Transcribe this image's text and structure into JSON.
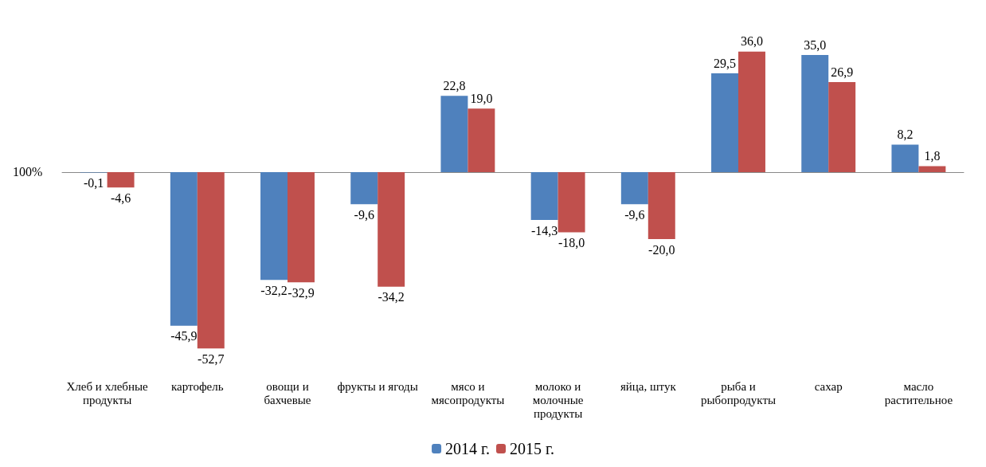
{
  "chart_data": {
    "type": "bar",
    "categories": [
      "Хлеб и хлебные продукты",
      "картофель",
      "овощи и бахчевые",
      "фрукты и ягоды",
      "мясо и мясопродукты",
      "молоко и молочные продукты",
      "яйца, штук",
      "рыба и рыбопродукты",
      "сахар",
      "масло растительное"
    ],
    "series": [
      {
        "name": "2014 г.",
        "color": "#4f81bd",
        "values": [
          -0.1,
          -45.9,
          -32.2,
          -9.6,
          22.8,
          -14.3,
          -9.6,
          29.5,
          35.0,
          8.2
        ],
        "value_labels": [
          "-0,1",
          "-45,9",
          "-32,2",
          "-9,6",
          "22,8",
          "-14,3",
          "-9,6",
          "29,5",
          "35,0",
          "8,2"
        ]
      },
      {
        "name": "2015 г.",
        "color": "#c0504d",
        "values": [
          -4.6,
          -52.7,
          -32.9,
          -34.2,
          19.0,
          -18.0,
          -20.0,
          36.0,
          26.9,
          1.8
        ],
        "value_labels": [
          "-4,6",
          "-52,7",
          "-32,9",
          "-34,2",
          "19,0",
          "-18,0",
          "-20,0",
          "36,0",
          "26,9",
          "1,8"
        ]
      }
    ],
    "annotations": [
      "100%"
    ],
    "legend": "bottom",
    "grid": false
  }
}
